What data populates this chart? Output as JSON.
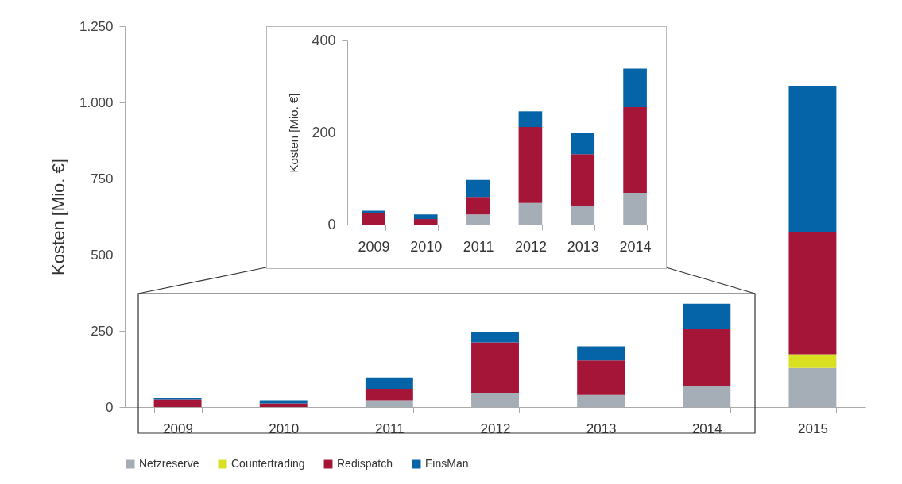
{
  "chart_data": [
    {
      "type": "bar",
      "stacked": true,
      "ylabel": "Kosten [Mio. €]",
      "categories": [
        "2009",
        "2010",
        "2011",
        "2012",
        "2013",
        "2014",
        "2015"
      ],
      "ylim": [
        0,
        1250
      ],
      "yticks": [
        0,
        250,
        500,
        750,
        {
          "value": 1000,
          "label": "1.000"
        },
        {
          "value": 1250,
          "label": "1.250"
        }
      ],
      "legend": "bottom",
      "series": [
        {
          "name": "Netzreserve",
          "color": "#a5adb7",
          "values": [
            0,
            0,
            22,
            47,
            40,
            69,
            128
          ]
        },
        {
          "name": "Countertrading",
          "color": "#d9e021",
          "values": [
            0,
            0,
            0,
            0,
            0,
            0,
            45
          ]
        },
        {
          "name": "Redispatch",
          "color": "#a41537",
          "values": [
            25,
            12,
            38,
            165,
            113,
            186,
            402
          ]
        },
        {
          "name": "EinsMan",
          "color": "#0563a8",
          "values": [
            5,
            10,
            37,
            34,
            46,
            84,
            477
          ]
        }
      ]
    },
    {
      "type": "bar",
      "stacked": true,
      "ylabel": "Kosten [Mio. €]",
      "categories": [
        "2009",
        "2010",
        "2011",
        "2012",
        "2013",
        "2014"
      ],
      "ylim": [
        0,
        400
      ],
      "yticks": [
        0,
        200,
        400
      ],
      "series": [
        {
          "color": "#a5adb7",
          "values": [
            0,
            0,
            22,
            47,
            40,
            69
          ]
        },
        {
          "color": "#d9e021",
          "values": [
            0,
            0,
            0,
            0,
            0,
            0
          ]
        },
        {
          "color": "#a41537",
          "values": [
            25,
            12,
            38,
            165,
            113,
            186
          ]
        },
        {
          "color": "#0563a8",
          "values": [
            5,
            10,
            37,
            34,
            46,
            84
          ]
        }
      ]
    }
  ]
}
